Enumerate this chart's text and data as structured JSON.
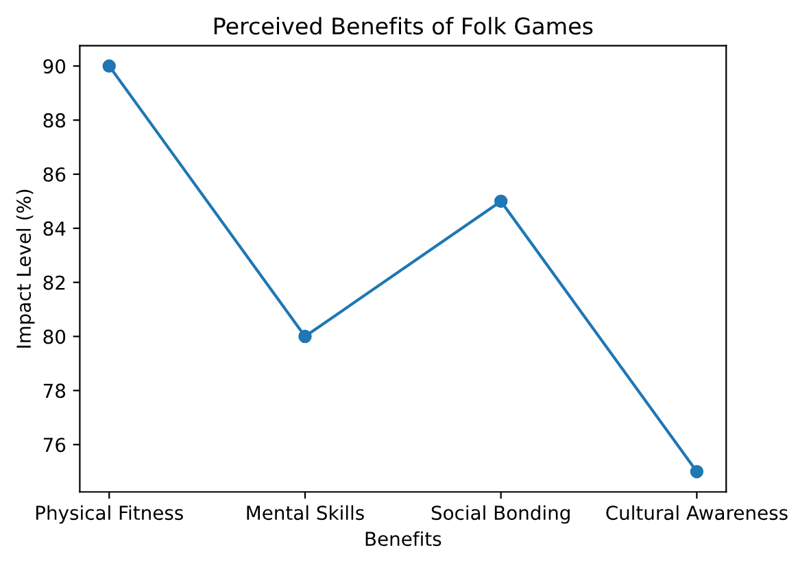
{
  "chart_data": {
    "type": "line",
    "title": "Perceived Benefits of Folk Games",
    "xlabel": "Benefits",
    "ylabel": "Impact Level (%)",
    "categories": [
      "Physical Fitness",
      "Mental Skills",
      "Social Bonding",
      "Cultural Awareness"
    ],
    "series": [
      {
        "color": "#1f77b4",
        "values": [
          90,
          80,
          85,
          75
        ]
      }
    ],
    "ylim": [
      74.25,
      90.75
    ],
    "yticks": [
      76,
      78,
      80,
      82,
      84,
      86,
      88,
      90
    ],
    "marker": "circle",
    "line_style": "solid",
    "grid": false,
    "legend": false
  }
}
